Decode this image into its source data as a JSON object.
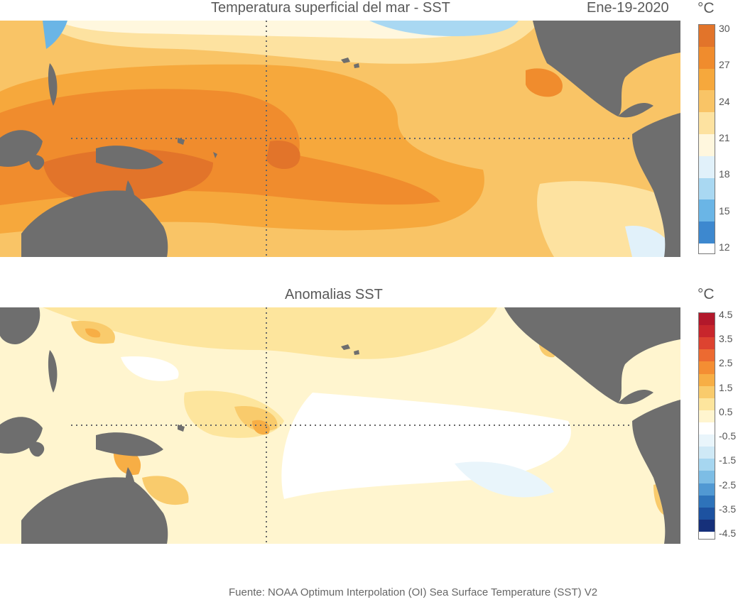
{
  "top": {
    "title": "Temperatura superficial del mar - SST",
    "date": "Ene-19-2020",
    "unit": "°C",
    "colorbar": {
      "colors": [
        "#e2742a",
        "#f08c2d",
        "#f6a83c",
        "#f9c466",
        "#fde2a0",
        "#fff7de",
        "#e1f1fa",
        "#a9d8f2",
        "#6ab5e6",
        "#3d88cf"
      ],
      "labels": [
        "30",
        "27",
        "24",
        "21",
        "18",
        "15",
        "12"
      ]
    }
  },
  "bottom": {
    "title": "Anomalias SST",
    "unit": "°C",
    "colorbar": {
      "colors": [
        "#b2182b",
        "#c8262c",
        "#dd4330",
        "#ec6a31",
        "#f48e33",
        "#f7ae45",
        "#f9cb6c",
        "#fde59d",
        "#fff5cf",
        "#ffffff",
        "#e9f5fb",
        "#cfe9f6",
        "#a6d6f0",
        "#7dbde5",
        "#5199d3",
        "#2e73ba",
        "#1d52a0",
        "#16307a"
      ],
      "labels": [
        "4.5",
        "3.5",
        "2.5",
        "1.5",
        "0.5",
        "-0.5",
        "-1.5",
        "-2.5",
        "-3.5",
        "-4.5"
      ]
    }
  },
  "footer": "Fuente: NOAA Optimum Interpolation (OI) Sea Surface Temperature (SST) V2"
}
